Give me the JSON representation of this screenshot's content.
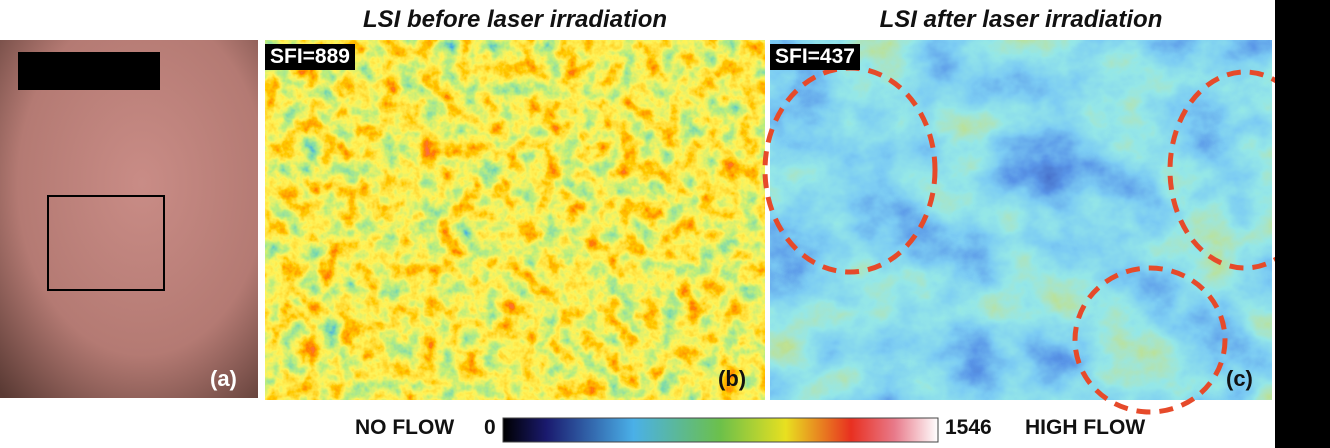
{
  "panels": [
    {
      "label": "(a)"
    },
    {
      "title": "LSI before laser irradiation",
      "index_label": "SFI=889",
      "label": "(b)"
    },
    {
      "title": "LSI after laser irradiation",
      "index_label": "SFI=437",
      "label": "(c)"
    }
  ],
  "colorbar": {
    "left_text": "NO FLOW",
    "min_label": "0",
    "max_label": "1546",
    "right_text": "HIGH FLOW"
  }
}
